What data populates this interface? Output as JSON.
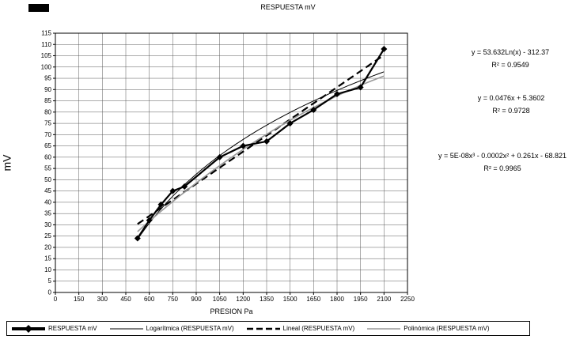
{
  "legend": [
    {
      "label": "RESPUESTA mV"
    },
    {
      "label": "Logarítmica (RESPUESTA mV)"
    },
    {
      "label": "Lineal (RESPUESTA mV)"
    },
    {
      "label": "Polinómica (RESPUESTA mV)"
    }
  ],
  "chart_data": {
    "type": "scatter",
    "title": "RESPUESTA mV",
    "xlabel": "PRESION Pa",
    "ylabel": "mV",
    "xlim": [
      0,
      2250
    ],
    "ylim": [
      0,
      115
    ],
    "x_tick_step": 150,
    "y_tick_step": 5,
    "grid": true,
    "legend_position": "bottom",
    "series": [
      {
        "name": "RESPUESTA mV",
        "marker": "diamond",
        "color": "#000000",
        "x": [
          525,
          600,
          675,
          750,
          825,
          1050,
          1200,
          1350,
          1500,
          1650,
          1800,
          1950,
          2100
        ],
        "y": [
          24,
          32,
          39,
          45,
          47,
          60,
          65,
          67,
          75,
          81,
          88,
          91,
          108
        ]
      }
    ],
    "trendlines": [
      {
        "name": "Logarítmica (RESPUESTA mV)",
        "equation": "y = 53.632Ln(x) - 312.37",
        "r2_label": "R² = 0.9549",
        "r2": 0.9549,
        "color": "#000000",
        "width": 1,
        "dash": "",
        "x_range": [
          525,
          2100
        ],
        "draw": {
          "type": "log",
          "coeffs": [
            53.632,
            -312.37
          ]
        }
      },
      {
        "name": "Lineal (RESPUESTA mV)",
        "equation": "y = 0.0476x + 5.3602",
        "r2_label": "R² = 0.9728",
        "r2": 0.9728,
        "color": "#000000",
        "width": 2.2,
        "dash": "9,5",
        "x_range": [
          525,
          2100
        ],
        "draw": {
          "type": "linear",
          "coeffs": [
            0.0476,
            5.3602
          ]
        }
      },
      {
        "name": "Polinómica (RESPUESTA mV)",
        "equation": "y = 5E-08x³ - 0.0002x² + 0.261x - 68.821",
        "r2_label": "R² = 0.9965",
        "r2": 0.9965,
        "color": "#999999",
        "width": 1.6,
        "dash": "",
        "x_range": [
          525,
          2100
        ],
        "draw": {
          "type": "poly",
          "coeffs": [
            -1.1365e-05,
            0.07364,
            -8.53
          ]
        }
      }
    ]
  }
}
